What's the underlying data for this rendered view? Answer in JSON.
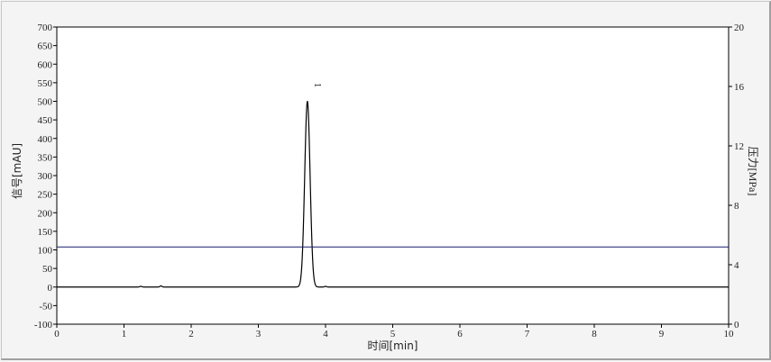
{
  "chart_data": {
    "type": "line",
    "xlabel": "时间[min]",
    "ylabel": "信号[mAU]",
    "y2label": "压力[MPa]",
    "xlim": [
      0,
      10
    ],
    "ylim": [
      -100,
      700
    ],
    "y2lim": [
      0,
      20
    ],
    "xticks": [
      "0",
      "1",
      "2",
      "3",
      "4",
      "5",
      "6",
      "7",
      "8",
      "9",
      "10"
    ],
    "yticks": [
      "-100",
      "-50",
      "0",
      "50",
      "100",
      "150",
      "200",
      "250",
      "300",
      "350",
      "400",
      "450",
      "500",
      "550",
      "600",
      "650",
      "700"
    ],
    "y2ticks": [
      "0",
      "4",
      "8",
      "12",
      "16",
      "20"
    ],
    "grid": false,
    "series": [
      {
        "axis": "left",
        "color": "#000000",
        "baseline": 0,
        "peaks": [
          {
            "time": 1.25,
            "height": 2,
            "width": 0.015
          },
          {
            "time": 1.55,
            "height": 3,
            "width": 0.015
          },
          {
            "time": 3.73,
            "height": 500,
            "width": 0.04
          },
          {
            "time": 4.0,
            "height": 2,
            "width": 0.015
          }
        ]
      },
      {
        "axis": "right",
        "color": "#1a1a6e",
        "constant": 5.2
      }
    ],
    "annotations": [
      {
        "text": "1",
        "x": 3.73,
        "y": 500
      }
    ]
  }
}
